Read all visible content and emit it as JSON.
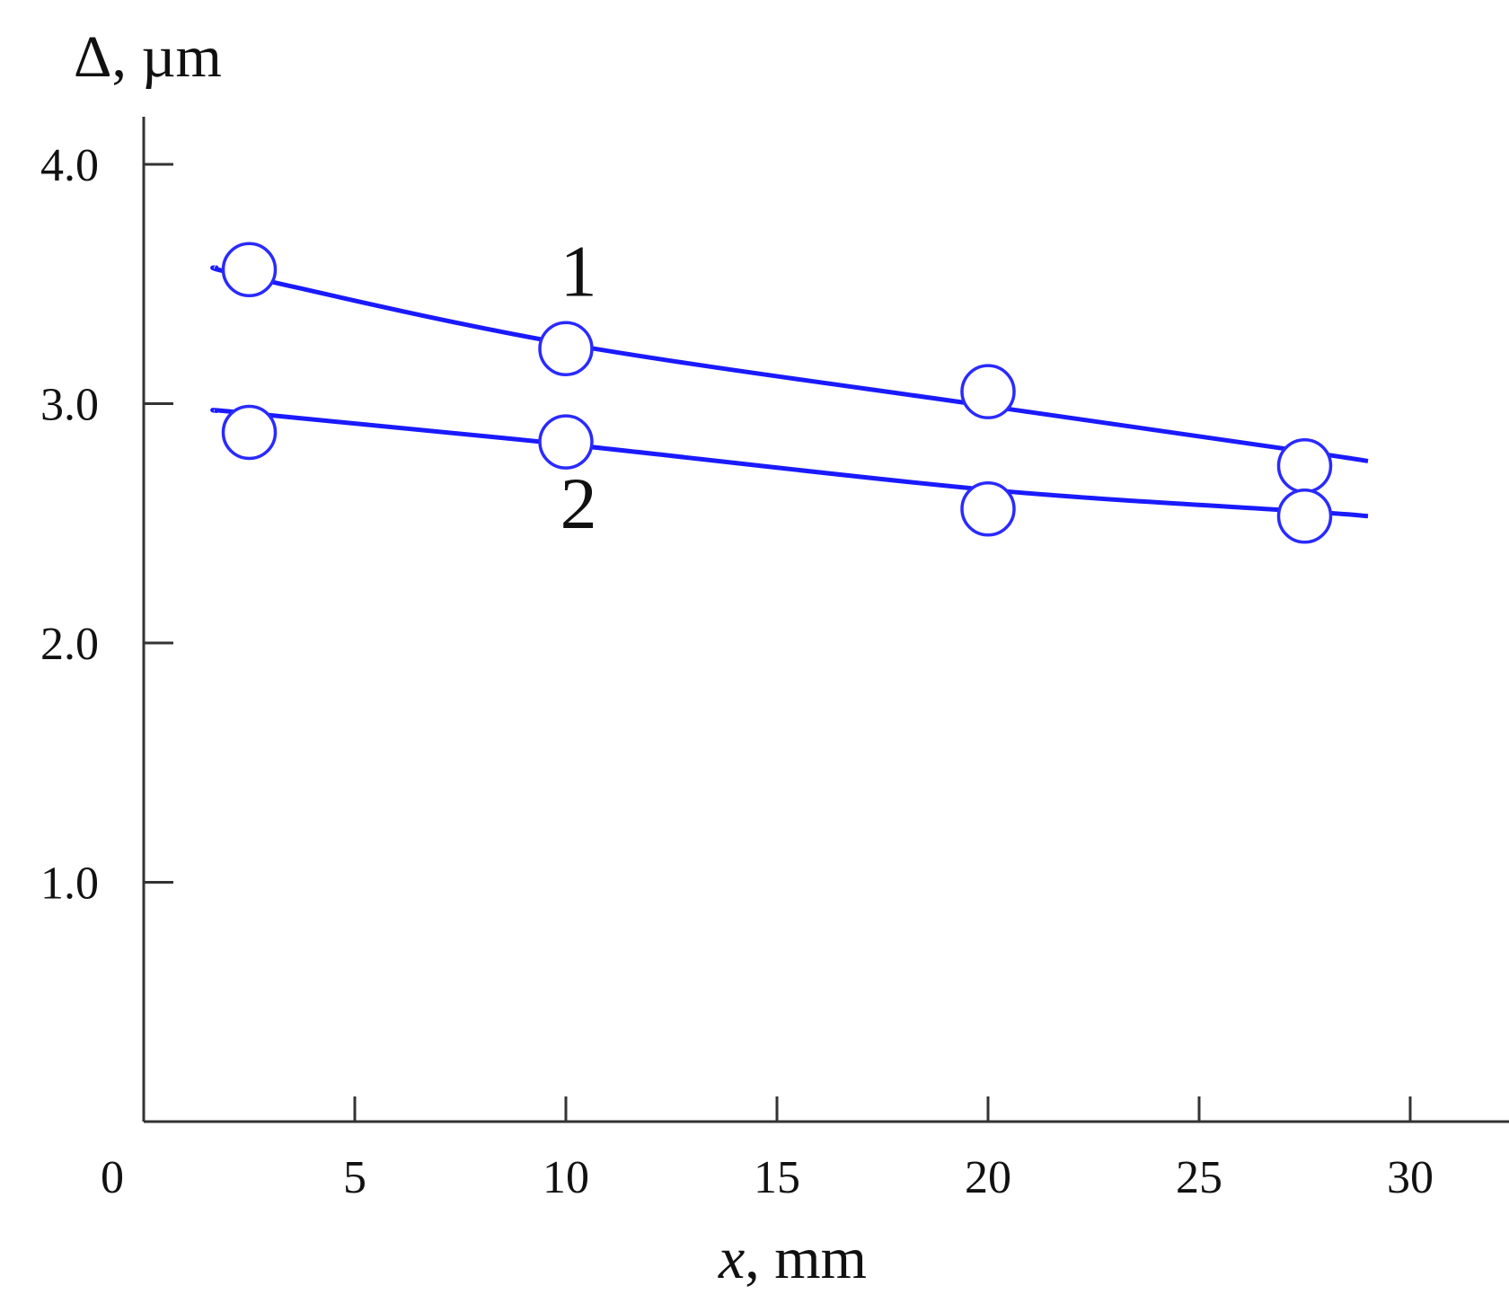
{
  "chart_data": {
    "type": "line",
    "ylabel": "Δ, µm",
    "xlabel": {
      "var": "x",
      "rest": ", mm"
    },
    "xlim": [
      0,
      32.5
    ],
    "ylim": [
      0,
      4.2
    ],
    "x_ticks": [
      0,
      5,
      10,
      15,
      20,
      25,
      30
    ],
    "x_tick_labels": [
      "0",
      "5",
      "10",
      "15",
      "20",
      "25",
      "30"
    ],
    "y_ticks": [
      1.0,
      2.0,
      3.0,
      4.0
    ],
    "y_tick_labels": [
      "1.0",
      "2.0",
      "3.0",
      "4.0"
    ],
    "grid": false,
    "legend": "none",
    "series": [
      {
        "label": "1",
        "label_at": [
          10.3,
          3.45
        ],
        "points": {
          "x": [
            2.5,
            10,
            20,
            27.5
          ],
          "y": [
            3.56,
            3.23,
            3.05,
            2.74
          ]
        },
        "fit": {
          "x": [
            1.7,
            2.5,
            10,
            20,
            27.5,
            29.0
          ],
          "y": [
            3.57,
            3.53,
            3.25,
            2.99,
            2.8,
            2.76
          ]
        }
      },
      {
        "label": "2",
        "label_at": [
          10.3,
          2.48
        ],
        "points": {
          "x": [
            2.5,
            10,
            20,
            27.5
          ],
          "y": [
            2.88,
            2.84,
            2.56,
            2.53
          ]
        },
        "fit": {
          "x": [
            1.7,
            2.5,
            10,
            20,
            27.5,
            29.0
          ],
          "y": [
            2.97,
            2.96,
            2.83,
            2.64,
            2.55,
            2.53
          ]
        }
      }
    ],
    "colors": {
      "line": "#1a1aff",
      "marker_edge": "#2a2aff",
      "marker_fill": "#ffffff",
      "axis": "#333333"
    }
  }
}
